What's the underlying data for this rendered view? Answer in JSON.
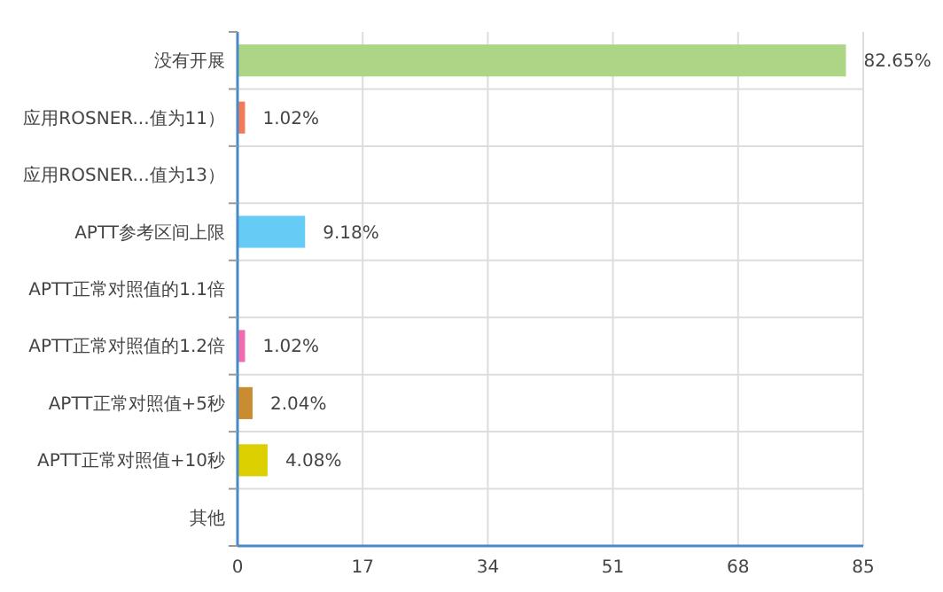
{
  "chart_data": {
    "type": "bar",
    "orientation": "horizontal",
    "categories": [
      "没有开展",
      "应用ROSNER...值为11）",
      "应用ROSNER...值为13）",
      "APTT参考区间上限",
      "APTT正常对照值的1.1倍",
      "APTT正常对照值的1.2倍",
      "APTT正常对照值+5秒",
      "APTT正常对照值+10秒",
      "其他"
    ],
    "values": [
      82.65,
      1.02,
      0,
      9.18,
      0,
      1.02,
      2.04,
      4.08,
      0
    ],
    "value_labels": [
      "82.65%",
      "1.02%",
      null,
      "9.18%",
      null,
      "1.02%",
      "2.04%",
      "4.08%",
      null
    ],
    "colors": [
      "#acd686",
      "#f07a5a",
      "#999999",
      "#66ccf5",
      "#999999",
      "#f06cb0",
      "#c98c30",
      "#ddd000",
      "#999999"
    ],
    "xlim": [
      0,
      85
    ],
    "xticks": [
      0,
      17,
      34,
      51,
      68,
      85
    ],
    "grid": true
  }
}
